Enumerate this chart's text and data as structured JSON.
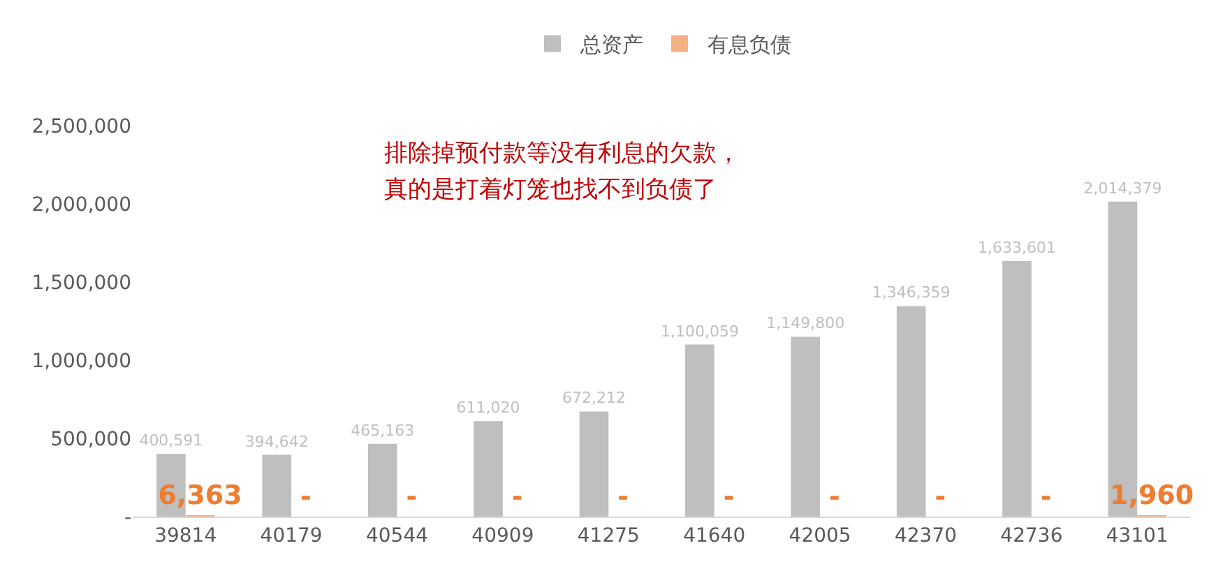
{
  "chart_data": {
    "type": "bar",
    "categories": [
      "39814",
      "40179",
      "40544",
      "40909",
      "41275",
      "41640",
      "42005",
      "42370",
      "42736",
      "43101"
    ],
    "series": [
      {
        "name": "总资产",
        "color": "#bfbfbf",
        "values": [
          400591,
          394642,
          465163,
          611020,
          672212,
          1100059,
          1149800,
          1346359,
          1633601,
          2014379
        ],
        "value_labels": [
          "400,591",
          "394,642",
          "465,163",
          "611,020",
          "672,212",
          "1,100,059",
          "1,149,800",
          "1,346,359",
          "1,633,601",
          "2,014,379"
        ]
      },
      {
        "name": "有息负债",
        "color": "#f4b183",
        "values": [
          6363,
          0,
          0,
          0,
          0,
          0,
          0,
          0,
          0,
          1960
        ],
        "value_labels": [
          "6,363",
          "-",
          "-",
          "-",
          "-",
          "-",
          "-",
          "-",
          "-",
          "1,960"
        ]
      }
    ],
    "ylim": [
      0,
      2500000
    ],
    "yticks": [
      {
        "value": 0,
        "label": "-"
      },
      {
        "value": 500000,
        "label": "500,000"
      },
      {
        "value": 1000000,
        "label": "1,000,000"
      },
      {
        "value": 1500000,
        "label": "1,500,000"
      },
      {
        "value": 2000000,
        "label": "2,000,000"
      },
      {
        "value": 2500000,
        "label": "2,500,000"
      }
    ],
    "grid": false,
    "legend": "top",
    "annotations": [
      "排除掉预付款等没有利息的欠款，",
      "真的是打着灯笼也找不到负债了"
    ]
  }
}
